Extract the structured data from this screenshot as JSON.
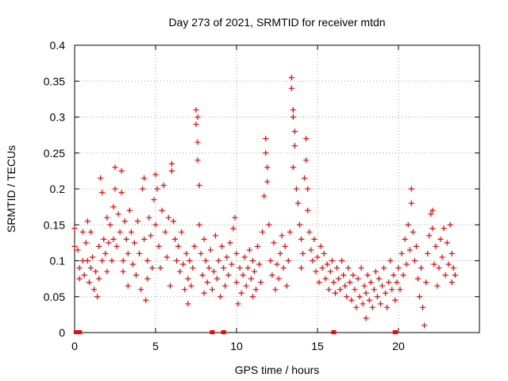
{
  "chart_data": {
    "type": "scatter",
    "title": "Day 273 of 2021, SRMTID for receiver mtdn",
    "xlabel": "GPS time / hours",
    "ylabel": "SRMTID / TECUs",
    "xlim": [
      0,
      25
    ],
    "ylim": [
      0,
      0.4
    ],
    "grid": true,
    "marker": "+",
    "color": "#ff0000",
    "x_ticks": [
      {
        "value": 0,
        "label": "0"
      },
      {
        "value": 5,
        "label": "5"
      },
      {
        "value": 10,
        "label": "10"
      },
      {
        "value": 15,
        "label": "15"
      },
      {
        "value": 20,
        "label": "20"
      }
    ],
    "y_ticks": [
      {
        "value": 0,
        "label": "0"
      },
      {
        "value": 0.05,
        "label": "0.05"
      },
      {
        "value": 0.1,
        "label": "0.1"
      },
      {
        "value": 0.15,
        "label": "0.15"
      },
      {
        "value": 0.2,
        "label": "0.2"
      },
      {
        "value": 0.25,
        "label": "0.25"
      },
      {
        "value": 0.3,
        "label": "0.3"
      },
      {
        "value": 0.35,
        "label": "0.35"
      },
      {
        "value": 0.4,
        "label": "0.4"
      }
    ],
    "series": [
      {
        "name": "SRMTID",
        "points": [
          [
            0.0,
            0.12
          ],
          [
            0.0,
            0.145
          ],
          [
            0.2,
            0.115
          ],
          [
            0.3,
            0.09
          ],
          [
            0.3,
            0.075
          ],
          [
            0.5,
            0.14
          ],
          [
            0.5,
            0.1
          ],
          [
            0.6,
            0.08
          ],
          [
            0.7,
            0.125
          ],
          [
            0.8,
            0.155
          ],
          [
            0.8,
            0.1
          ],
          [
            0.9,
            0.07
          ],
          [
            1.0,
            0.14
          ],
          [
            1.0,
            0.09
          ],
          [
            1.1,
            0.105
          ],
          [
            1.2,
            0.06
          ],
          [
            1.3,
            0.085
          ],
          [
            1.4,
            0.05
          ],
          [
            1.5,
            0.12
          ],
          [
            1.5,
            0.075
          ],
          [
            1.6,
            0.215
          ],
          [
            1.7,
            0.195
          ],
          [
            1.7,
            0.1
          ],
          [
            1.8,
            0.13
          ],
          [
            1.9,
            0.11
          ],
          [
            2.0,
            0.16
          ],
          [
            2.0,
            0.085
          ],
          [
            2.1,
            0.125
          ],
          [
            2.2,
            0.15
          ],
          [
            2.3,
            0.1
          ],
          [
            2.4,
            0.175
          ],
          [
            2.4,
            0.13
          ],
          [
            2.5,
            0.23
          ],
          [
            2.5,
            0.2
          ],
          [
            2.6,
            0.12
          ],
          [
            2.7,
            0.165
          ],
          [
            2.8,
            0.14
          ],
          [
            2.9,
            0.225
          ],
          [
            2.9,
            0.195
          ],
          [
            3.0,
            0.1
          ],
          [
            3.0,
            0.085
          ],
          [
            3.1,
            0.155
          ],
          [
            3.2,
            0.13
          ],
          [
            3.3,
            0.065
          ],
          [
            3.3,
            0.11
          ],
          [
            3.4,
            0.17
          ],
          [
            3.5,
            0.14
          ],
          [
            3.6,
            0.095
          ],
          [
            3.7,
            0.125
          ],
          [
            3.8,
            0.08
          ],
          [
            3.9,
            0.155
          ],
          [
            4.0,
            0.11
          ],
          [
            4.1,
            0.06
          ],
          [
            4.2,
            0.2
          ],
          [
            4.3,
            0.215
          ],
          [
            4.3,
            0.13
          ],
          [
            4.4,
            0.045
          ],
          [
            4.5,
            0.1
          ],
          [
            4.5,
            0.075
          ],
          [
            4.6,
            0.16
          ],
          [
            4.7,
            0.135
          ],
          [
            4.8,
            0.09
          ],
          [
            4.9,
            0.185
          ],
          [
            5.0,
            0.22
          ],
          [
            5.0,
            0.15
          ],
          [
            5.1,
            0.2
          ],
          [
            5.2,
            0.12
          ],
          [
            5.3,
            0.09
          ],
          [
            5.4,
            0.17
          ],
          [
            5.5,
            0.205
          ],
          [
            5.6,
            0.14
          ],
          [
            5.7,
            0.105
          ],
          [
            5.8,
            0.16
          ],
          [
            5.9,
            0.065
          ],
          [
            6.0,
            0.235
          ],
          [
            6.0,
            0.225
          ],
          [
            6.1,
            0.155
          ],
          [
            6.2,
            0.13
          ],
          [
            6.3,
            0.1
          ],
          [
            6.4,
            0.12
          ],
          [
            6.5,
            0.085
          ],
          [
            6.6,
            0.14
          ],
          [
            6.7,
            0.095
          ],
          [
            6.8,
            0.06
          ],
          [
            6.9,
            0.11
          ],
          [
            7.0,
            0.04
          ],
          [
            7.0,
            0.075
          ],
          [
            7.1,
            0.1
          ],
          [
            7.2,
            0.065
          ],
          [
            7.3,
            0.09
          ],
          [
            7.4,
            0.12
          ],
          [
            7.5,
            0.31
          ],
          [
            7.5,
            0.29
          ],
          [
            7.6,
            0.3
          ],
          [
            7.6,
            0.265
          ],
          [
            7.6,
            0.24
          ],
          [
            7.7,
            0.205
          ],
          [
            7.7,
            0.15
          ],
          [
            7.8,
            0.11
          ],
          [
            7.9,
            0.08
          ],
          [
            8.0,
            0.13
          ],
          [
            8.0,
            0.055
          ],
          [
            8.1,
            0.1
          ],
          [
            8.2,
            0.07
          ],
          [
            8.3,
            0.09
          ],
          [
            8.4,
            0.115
          ],
          [
            8.5,
            0.06
          ],
          [
            8.6,
            0.085
          ],
          [
            8.7,
            0.135
          ],
          [
            8.8,
            0.075
          ],
          [
            8.9,
            0.1
          ],
          [
            9.0,
            0.05
          ],
          [
            9.1,
            0.12
          ],
          [
            9.2,
            0.09
          ],
          [
            9.3,
            0.065
          ],
          [
            9.4,
            0.105
          ],
          [
            9.5,
            0.08
          ],
          [
            9.6,
            0.125
          ],
          [
            9.7,
            0.095
          ],
          [
            9.8,
            0.145
          ],
          [
            9.9,
            0.16
          ],
          [
            10.0,
            0.11
          ],
          [
            10.0,
            0.07
          ],
          [
            10.1,
            0.04
          ],
          [
            10.2,
            0.09
          ],
          [
            10.3,
            0.055
          ],
          [
            10.4,
            0.08
          ],
          [
            10.5,
            0.105
          ],
          [
            10.6,
            0.065
          ],
          [
            10.7,
            0.09
          ],
          [
            10.8,
            0.115
          ],
          [
            10.9,
            0.075
          ],
          [
            11.0,
            0.05
          ],
          [
            11.0,
            0.1
          ],
          [
            11.1,
            0.085
          ],
          [
            11.2,
            0.06
          ],
          [
            11.3,
            0.12
          ],
          [
            11.4,
            0.095
          ],
          [
            11.5,
            0.07
          ],
          [
            11.6,
            0.14
          ],
          [
            11.7,
            0.19
          ],
          [
            11.8,
            0.27
          ],
          [
            11.8,
            0.25
          ],
          [
            11.9,
            0.23
          ],
          [
            11.9,
            0.21
          ],
          [
            12.0,
            0.15
          ],
          [
            12.1,
            0.1
          ],
          [
            12.2,
            0.08
          ],
          [
            12.3,
            0.125
          ],
          [
            12.4,
            0.06
          ],
          [
            12.5,
            0.095
          ],
          [
            12.6,
            0.075
          ],
          [
            12.7,
            0.11
          ],
          [
            12.8,
            0.135
          ],
          [
            12.9,
            0.09
          ],
          [
            13.0,
            0.12
          ],
          [
            13.1,
            0.065
          ],
          [
            13.2,
            0.1
          ],
          [
            13.3,
            0.14
          ],
          [
            13.4,
            0.355
          ],
          [
            13.4,
            0.34
          ],
          [
            13.5,
            0.31
          ],
          [
            13.5,
            0.3
          ],
          [
            13.5,
            0.23
          ],
          [
            13.6,
            0.28
          ],
          [
            13.6,
            0.26
          ],
          [
            13.7,
            0.2
          ],
          [
            13.8,
            0.18
          ],
          [
            13.9,
            0.15
          ],
          [
            14.0,
            0.13
          ],
          [
            14.0,
            0.09
          ],
          [
            14.1,
            0.11
          ],
          [
            14.2,
            0.215
          ],
          [
            14.3,
            0.27
          ],
          [
            14.3,
            0.24
          ],
          [
            14.4,
            0.2
          ],
          [
            14.4,
            0.17
          ],
          [
            14.5,
            0.14
          ],
          [
            14.6,
            0.115
          ],
          [
            14.7,
            0.1
          ],
          [
            14.8,
            0.13
          ],
          [
            14.9,
            0.085
          ],
          [
            15.0,
            0.105
          ],
          [
            15.1,
            0.07
          ],
          [
            15.2,
            0.12
          ],
          [
            15.3,
            0.09
          ],
          [
            15.4,
            0.11
          ],
          [
            15.5,
            0.075
          ],
          [
            15.6,
            0.095
          ],
          [
            15.7,
            0.06
          ],
          [
            15.8,
            0.085
          ],
          [
            15.9,
            0.1
          ],
          [
            16.0,
            0.07
          ],
          [
            16.1,
            0.055
          ],
          [
            16.2,
            0.09
          ],
          [
            16.3,
            0.075
          ],
          [
            16.4,
            0.06
          ],
          [
            16.5,
            0.1
          ],
          [
            16.6,
            0.08
          ],
          [
            16.7,
            0.065
          ],
          [
            16.8,
            0.05
          ],
          [
            16.9,
            0.09
          ],
          [
            17.0,
            0.07
          ],
          [
            17.1,
            0.045
          ],
          [
            17.2,
            0.08
          ],
          [
            17.3,
            0.06
          ],
          [
            17.4,
            0.035
          ],
          [
            17.5,
            0.075
          ],
          [
            17.6,
            0.05
          ],
          [
            17.7,
            0.09
          ],
          [
            17.8,
            0.04
          ],
          [
            17.9,
            0.065
          ],
          [
            18.0,
            0.02
          ],
          [
            18.0,
            0.055
          ],
          [
            18.1,
            0.08
          ],
          [
            18.2,
            0.045
          ],
          [
            18.3,
            0.07
          ],
          [
            18.4,
            0.035
          ],
          [
            18.5,
            0.06
          ],
          [
            18.6,
            0.085
          ],
          [
            18.7,
            0.05
          ],
          [
            18.8,
            0.075
          ],
          [
            18.9,
            0.04
          ],
          [
            19.0,
            0.065
          ],
          [
            19.1,
            0.09
          ],
          [
            19.2,
            0.055
          ],
          [
            19.3,
            0.035
          ],
          [
            19.4,
            0.07
          ],
          [
            19.5,
            0.1
          ],
          [
            19.6,
            0.06
          ],
          [
            19.7,
            0.08
          ],
          [
            19.8,
            0.045
          ],
          [
            19.9,
            0.07
          ],
          [
            20.0,
            0.09
          ],
          [
            20.1,
            0.06
          ],
          [
            20.2,
            0.11
          ],
          [
            20.3,
            0.08
          ],
          [
            20.4,
            0.13
          ],
          [
            20.5,
            0.095
          ],
          [
            20.6,
            0.15
          ],
          [
            20.7,
            0.115
          ],
          [
            20.8,
            0.2
          ],
          [
            20.8,
            0.18
          ],
          [
            20.9,
            0.14
          ],
          [
            21.0,
            0.1
          ],
          [
            21.1,
            0.12
          ],
          [
            21.2,
            0.075
          ],
          [
            21.3,
            0.05
          ],
          [
            21.4,
            0.09
          ],
          [
            21.5,
            0.035
          ],
          [
            21.6,
            0.01
          ],
          [
            21.7,
            0.07
          ],
          [
            21.8,
            0.11
          ],
          [
            21.9,
            0.135
          ],
          [
            22.0,
            0.165
          ],
          [
            22.1,
            0.17
          ],
          [
            22.1,
            0.145
          ],
          [
            22.2,
            0.095
          ],
          [
            22.3,
            0.12
          ],
          [
            22.4,
            0.065
          ],
          [
            22.5,
            0.09
          ],
          [
            22.6,
            0.13
          ],
          [
            22.7,
            0.105
          ],
          [
            22.8,
            0.145
          ],
          [
            22.9,
            0.08
          ],
          [
            23.0,
            0.125
          ],
          [
            23.1,
            0.095
          ],
          [
            23.2,
            0.15
          ],
          [
            23.3,
            0.11
          ],
          [
            23.3,
            0.07
          ],
          [
            23.4,
            0.09
          ],
          [
            23.5,
            0.08
          ]
        ]
      }
    ],
    "baseline_markers": [
      0.1,
      0.3,
      8.5,
      9.2,
      16.0,
      19.8
    ]
  }
}
